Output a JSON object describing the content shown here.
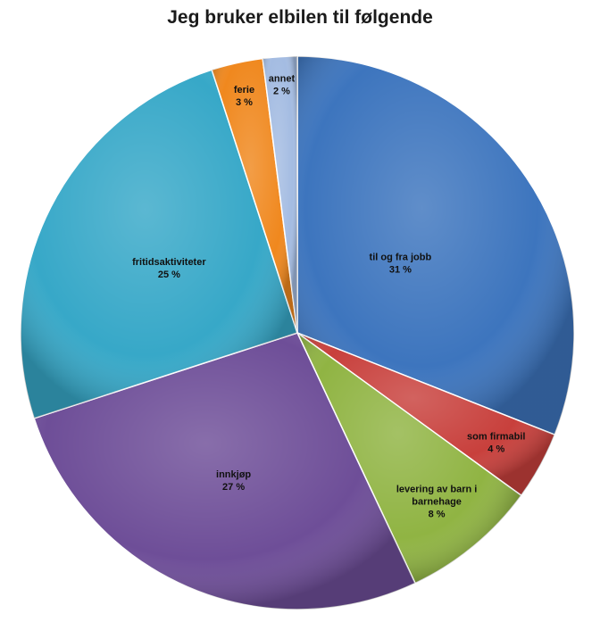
{
  "chart_data": {
    "type": "pie",
    "title": "Jeg bruker elbilen til følgende",
    "slices": [
      {
        "label": "til og fra jobb",
        "value_text": "31 %",
        "value": 31,
        "color": "#3D75BE"
      },
      {
        "label": "som firmabil",
        "value_text": "4 %",
        "value": 4,
        "color": "#C8403C"
      },
      {
        "label": "levering av barn i barnehage",
        "value_text": "8 %",
        "value": 8,
        "color": "#90B443"
      },
      {
        "label": "innkjøp",
        "value_text": "27 %",
        "value": 27,
        "color": "#6E4E98"
      },
      {
        "label": "fritidsaktiviteter",
        "value_text": "25 %",
        "value": 25,
        "color": "#37A8C8"
      },
      {
        "label": "ferie",
        "value_text": "3 %",
        "value": 3,
        "color": "#F0881E"
      },
      {
        "label": "annet",
        "value_text": "2 %",
        "value": 2,
        "color": "#A4BCE2"
      }
    ]
  }
}
